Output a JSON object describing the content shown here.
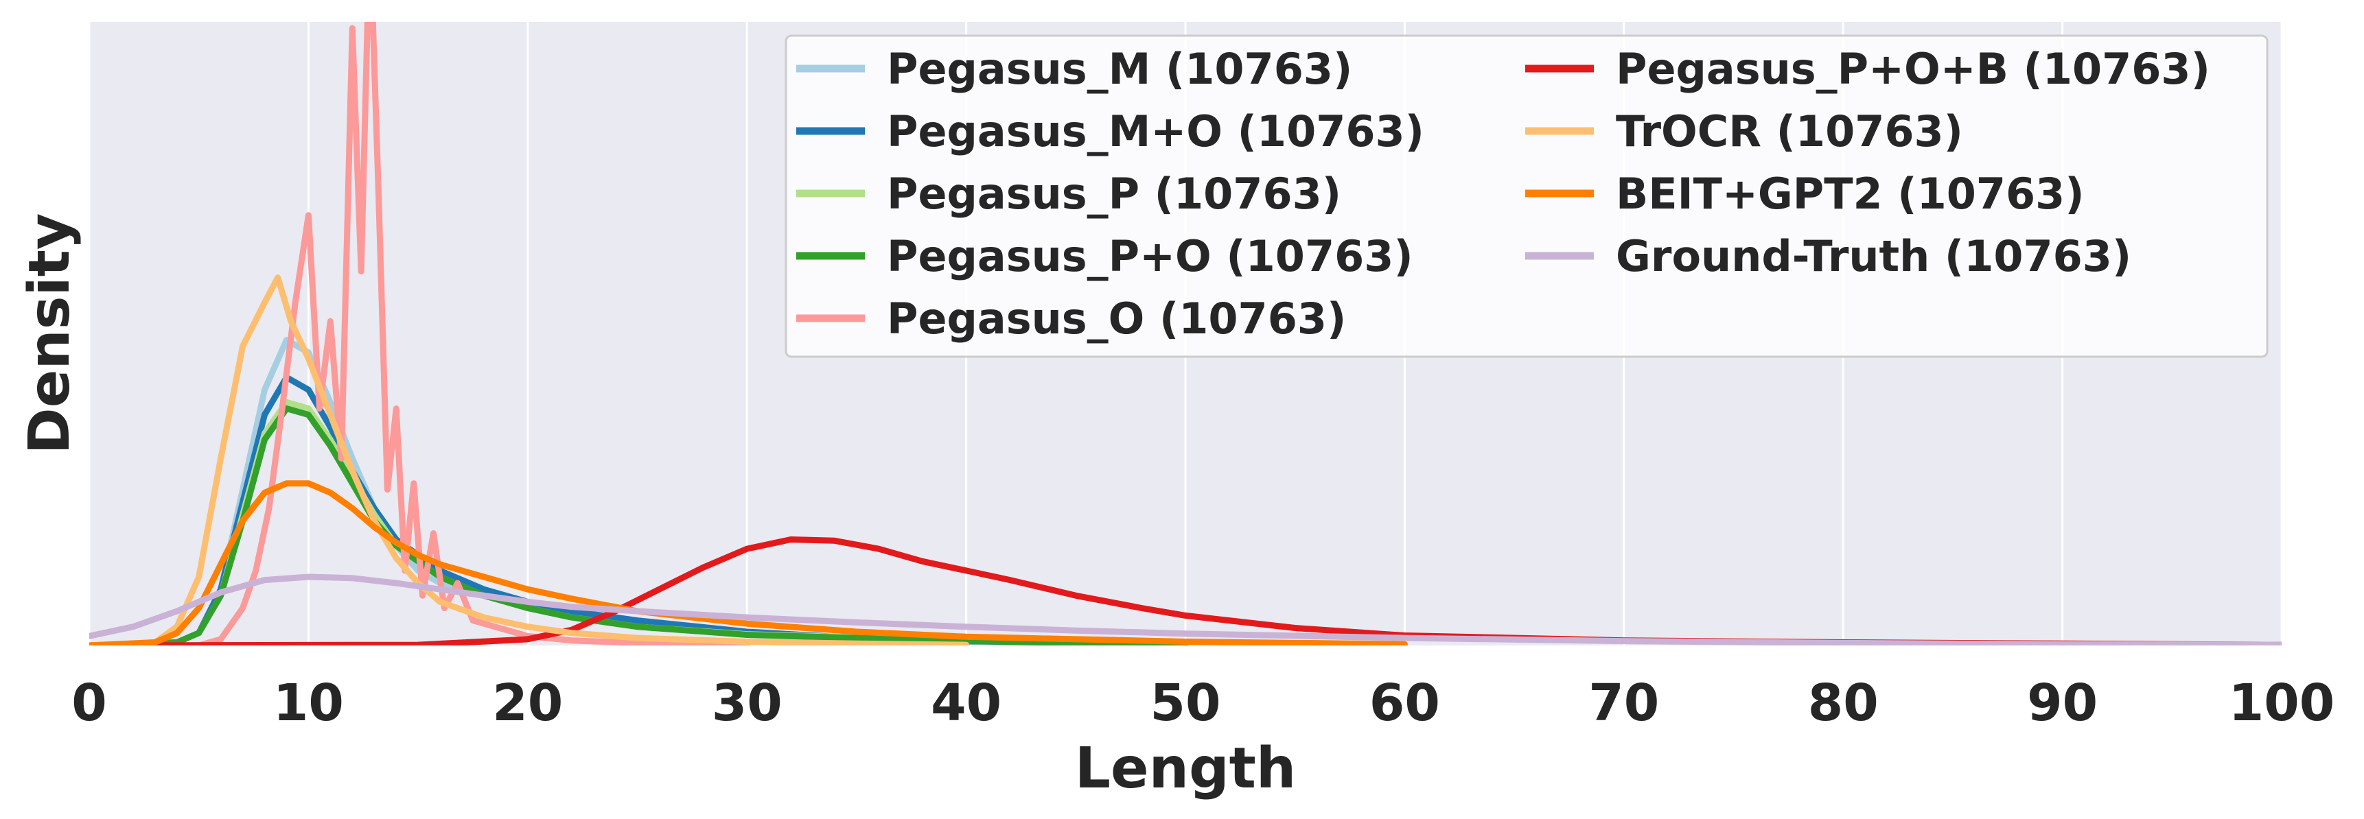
{
  "chart_data": {
    "type": "line",
    "title": "",
    "xlabel": "Length",
    "ylabel": "Density",
    "xlim": [
      0,
      100
    ],
    "ylim": [
      0,
      1.0
    ],
    "x_ticks": [
      0,
      10,
      20,
      30,
      40,
      50,
      60,
      70,
      80,
      90,
      100
    ],
    "y_ticks_shown": false,
    "grid": true,
    "background": "#eaeaf2",
    "legend": {
      "placement": "top-right",
      "columns": 2
    },
    "series": [
      {
        "name": "Pegasus_M (10763)",
        "color": "#a6cee3",
        "x": [
          0,
          4,
          5,
          6,
          7,
          8,
          9,
          10,
          11,
          12,
          13,
          14,
          15,
          16,
          18,
          20,
          22,
          25,
          30,
          35,
          40,
          45,
          50
        ],
        "y": [
          0,
          0.005,
          0.02,
          0.09,
          0.25,
          0.41,
          0.49,
          0.47,
          0.39,
          0.3,
          0.22,
          0.16,
          0.12,
          0.1,
          0.08,
          0.06,
          0.045,
          0.03,
          0.018,
          0.01,
          0.006,
          0.003,
          0.001
        ]
      },
      {
        "name": "Pegasus_M+O (10763)",
        "color": "#1f78b4",
        "x": [
          0,
          4,
          5,
          6,
          7,
          8,
          9,
          10,
          11,
          12,
          13,
          14,
          16,
          18,
          20,
          22,
          25,
          30,
          35,
          40,
          45,
          52
        ],
        "y": [
          0,
          0.005,
          0.02,
          0.09,
          0.23,
          0.37,
          0.43,
          0.41,
          0.35,
          0.28,
          0.22,
          0.17,
          0.12,
          0.09,
          0.07,
          0.055,
          0.04,
          0.022,
          0.012,
          0.007,
          0.004,
          0.001
        ]
      },
      {
        "name": "Pegasus_P (10763)",
        "color": "#b2df8a",
        "x": [
          0,
          4,
          5,
          6,
          7,
          8,
          9,
          10,
          11,
          12,
          13,
          14,
          16,
          18,
          20,
          22,
          25,
          30,
          40,
          50,
          58
        ],
        "y": [
          0,
          0.005,
          0.02,
          0.08,
          0.21,
          0.34,
          0.39,
          0.38,
          0.33,
          0.27,
          0.21,
          0.16,
          0.11,
          0.08,
          0.06,
          0.045,
          0.03,
          0.018,
          0.008,
          0.004,
          0.001
        ]
      },
      {
        "name": "Pegasus_P+O (10763)",
        "color": "#33a02c",
        "x": [
          0,
          4,
          5,
          6,
          7,
          8,
          9,
          10,
          11,
          12,
          13,
          14,
          16,
          18,
          20,
          22,
          25,
          30,
          40,
          50
        ],
        "y": [
          0,
          0.005,
          0.02,
          0.08,
          0.2,
          0.33,
          0.38,
          0.37,
          0.32,
          0.26,
          0.2,
          0.16,
          0.11,
          0.08,
          0.06,
          0.045,
          0.03,
          0.017,
          0.007,
          0.002
        ]
      },
      {
        "name": "Pegasus_O (10763)",
        "color": "#fb9a99",
        "x": [
          0,
          5,
          6,
          7,
          7.6,
          8.2,
          8.8,
          9.4,
          10,
          10.5,
          11,
          11.5,
          12,
          12.4,
          12.8,
          13.2,
          13.6,
          14,
          14.4,
          14.8,
          15.2,
          15.7,
          16.2,
          16.8,
          17.5,
          18.5,
          20,
          22,
          25,
          30
        ],
        "y": [
          0,
          0,
          0.01,
          0.06,
          0.12,
          0.22,
          0.38,
          0.55,
          0.69,
          0.38,
          0.52,
          0.3,
          0.99,
          0.6,
          1.15,
          0.72,
          0.25,
          0.38,
          0.12,
          0.26,
          0.08,
          0.18,
          0.06,
          0.1,
          0.04,
          0.03,
          0.015,
          0.008,
          0.004,
          0.001
        ]
      },
      {
        "name": "Pegasus_P+O+B (10763)",
        "color": "#e31a1c",
        "x": [
          0,
          15,
          20,
          22,
          24,
          26,
          28,
          30,
          32,
          34,
          36,
          38,
          40,
          42,
          45,
          48,
          50,
          55,
          60,
          70,
          80,
          90,
          100
        ],
        "y": [
          0,
          0.001,
          0.01,
          0.025,
          0.055,
          0.09,
          0.125,
          0.155,
          0.17,
          0.168,
          0.155,
          0.135,
          0.12,
          0.105,
          0.08,
          0.06,
          0.048,
          0.028,
          0.016,
          0.008,
          0.005,
          0.003,
          0.001
        ]
      },
      {
        "name": "TrOCR (10763)",
        "color": "#fdbf6f",
        "x": [
          0,
          3,
          4,
          5,
          6,
          7,
          8,
          8.6,
          9.2,
          10,
          11,
          12,
          13,
          14,
          15,
          16,
          18,
          20,
          22,
          25,
          30,
          35,
          40
        ],
        "y": [
          0,
          0.005,
          0.03,
          0.11,
          0.3,
          0.48,
          0.55,
          0.59,
          0.52,
          0.46,
          0.37,
          0.28,
          0.2,
          0.14,
          0.1,
          0.07,
          0.045,
          0.03,
          0.02,
          0.012,
          0.006,
          0.003,
          0.001
        ]
      },
      {
        "name": "BEIT+GPT2 (10763)",
        "color": "#ff7f00",
        "x": [
          0,
          3,
          4,
          5,
          6,
          7,
          8,
          9,
          10,
          11,
          12,
          13,
          14,
          15,
          16,
          18,
          20,
          22,
          25,
          30,
          35,
          40,
          50,
          60
        ],
        "y": [
          0,
          0.005,
          0.02,
          0.06,
          0.13,
          0.2,
          0.245,
          0.26,
          0.26,
          0.245,
          0.22,
          0.19,
          0.165,
          0.145,
          0.13,
          0.11,
          0.09,
          0.075,
          0.055,
          0.035,
          0.022,
          0.014,
          0.006,
          0.002
        ]
      },
      {
        "name": "Ground-Truth (10763)",
        "color": "#cab2d6",
        "x": [
          0,
          2,
          4,
          6,
          8,
          10,
          12,
          14,
          16,
          18,
          20,
          22,
          25,
          30,
          35,
          40,
          45,
          50,
          60,
          70,
          80,
          90,
          100
        ],
        "y": [
          0.015,
          0.03,
          0.055,
          0.085,
          0.105,
          0.11,
          0.108,
          0.1,
          0.09,
          0.08,
          0.07,
          0.062,
          0.055,
          0.045,
          0.037,
          0.03,
          0.024,
          0.019,
          0.012,
          0.007,
          0.004,
          0.002,
          0.001
        ]
      }
    ]
  }
}
